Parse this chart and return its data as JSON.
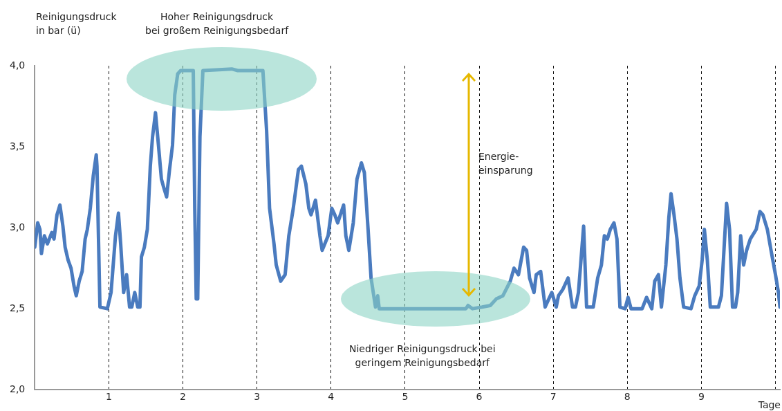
{
  "chart_data": {
    "type": "line",
    "ylabel": "Reinigungsdruck\nin bar (ü)",
    "xlabel": "Tage",
    "annotations": [
      "Hoher Reinigungsdruck\nbei großem Reinigungsbedarf",
      "Niedriger Reinigungsdruck bei\ngeringem Reinigungsbedarf",
      "Energie-\neinsparung"
    ],
    "xlim": [
      0,
      10.06
    ],
    "xticks": [
      1,
      2,
      3,
      4,
      5,
      6,
      7,
      8,
      9,
      {
        "value": 10,
        "label": null
      }
    ],
    "ylim": [
      2,
      4
    ],
    "yticks": [
      {
        "value": 2,
        "label": "2,0"
      },
      {
        "value": 2.5,
        "label": "2,5"
      },
      {
        "value": 3,
        "label": "3,0"
      },
      {
        "value": 3.5,
        "label": "3,5"
      },
      {
        "value": 4,
        "label": "4,0"
      }
    ],
    "grid": "x",
    "marker": "none",
    "line_style": "solid",
    "series": [
      {
        "color": "#4a7bbf",
        "x": [
          0,
          0.04,
          0.07,
          0.09,
          0.13,
          0.17,
          0.23,
          0.26,
          0.3,
          0.34,
          0.38,
          0.41,
          0.45,
          0.49,
          0.53,
          0.56,
          0.6,
          0.64,
          0.68,
          0.71,
          0.75,
          0.79,
          0.83,
          0.84,
          0.88,
          0.98,
          1.03,
          1.09,
          1.13,
          1.16,
          1.2,
          1.24,
          1.28,
          1.31,
          1.35,
          1.39,
          1.42,
          1.44,
          1.48,
          1.52,
          1.56,
          1.59,
          1.63,
          1.67,
          1.71,
          1.74,
          1.78,
          1.82,
          1.86,
          1.89,
          1.93,
          1.97,
          2.14,
          2.16,
          2.18,
          2.2,
          2.23,
          2.27,
          2.66,
          2.74,
          3.08,
          3.13,
          3.17,
          3.23,
          3.26,
          3.32,
          3.38,
          3.43,
          3.49,
          3.56,
          3.6,
          3.66,
          3.7,
          3.73,
          3.79,
          3.85,
          3.88,
          3.96,
          4.01,
          4.05,
          4.09,
          4.17,
          4.2,
          4.24,
          4.3,
          4.35,
          4.41,
          4.45,
          4.5,
          4.54,
          4.6,
          4.63,
          4.65,
          5.1,
          5.82,
          5.85,
          5.91,
          6.04,
          6.15,
          6.23,
          6.32,
          6.42,
          6.47,
          6.53,
          6.6,
          6.64,
          6.68,
          6.74,
          6.77,
          6.83,
          6.89,
          6.98,
          7.04,
          7.07,
          7.13,
          7.2,
          7.26,
          7.3,
          7.34,
          7.41,
          7.45,
          7.54,
          7.6,
          7.65,
          7.69,
          7.73,
          7.77,
          7.82,
          7.86,
          7.9,
          7.97,
          8.01,
          8.05,
          8.2,
          8.26,
          8.33,
          8.37,
          8.42,
          8.46,
          8.52,
          8.56,
          8.59,
          8.63,
          8.67,
          8.71,
          8.76,
          8.86,
          8.91,
          8.97,
          9.01,
          9.04,
          9.08,
          9.12,
          9.23,
          9.27,
          9.34,
          9.38,
          9.42,
          9.46,
          9.49,
          9.53,
          9.57,
          9.61,
          9.66,
          9.74,
          9.79,
          9.83,
          9.89,
          9.94,
          10.0,
          10.04,
          10.06
        ],
        "values": [
          2.88,
          3.03,
          2.99,
          2.84,
          2.95,
          2.9,
          2.97,
          2.93,
          3.08,
          3.14,
          3.01,
          2.88,
          2.8,
          2.75,
          2.64,
          2.58,
          2.67,
          2.73,
          2.93,
          2.99,
          3.12,
          3.32,
          3.45,
          3.38,
          2.51,
          2.5,
          2.6,
          2.95,
          3.09,
          2.9,
          2.6,
          2.71,
          2.51,
          2.51,
          2.6,
          2.51,
          2.51,
          2.82,
          2.88,
          2.99,
          3.38,
          3.56,
          3.71,
          3.51,
          3.3,
          3.25,
          3.19,
          3.36,
          3.51,
          3.82,
          3.95,
          3.97,
          3.97,
          3.12,
          2.56,
          2.56,
          3.56,
          3.97,
          3.98,
          3.97,
          3.97,
          3.6,
          3.12,
          2.9,
          2.77,
          2.67,
          2.71,
          2.95,
          3.12,
          3.36,
          3.38,
          3.27,
          3.12,
          3.08,
          3.17,
          2.95,
          2.86,
          2.95,
          3.12,
          3.08,
          3.03,
          3.14,
          2.95,
          2.86,
          3.03,
          3.3,
          3.4,
          3.34,
          2.99,
          2.69,
          2.51,
          2.58,
          2.5,
          2.5,
          2.5,
          2.52,
          2.5,
          2.51,
          2.52,
          2.56,
          2.58,
          2.67,
          2.75,
          2.71,
          2.88,
          2.86,
          2.69,
          2.6,
          2.71,
          2.73,
          2.51,
          2.6,
          2.51,
          2.58,
          2.62,
          2.69,
          2.51,
          2.51,
          2.6,
          3.01,
          2.51,
          2.51,
          2.69,
          2.77,
          2.95,
          2.93,
          2.99,
          3.03,
          2.93,
          2.51,
          2.5,
          2.57,
          2.5,
          2.5,
          2.57,
          2.5,
          2.67,
          2.71,
          2.51,
          2.77,
          3.06,
          3.21,
          3.08,
          2.93,
          2.69,
          2.51,
          2.5,
          2.58,
          2.64,
          2.8,
          2.99,
          2.8,
          2.51,
          2.51,
          2.58,
          3.15,
          2.99,
          2.51,
          2.51,
          2.6,
          2.95,
          2.77,
          2.86,
          2.93,
          2.99,
          3.1,
          3.08,
          2.99,
          2.86,
          2.71,
          2.6,
          2.51
        ]
      }
    ]
  }
}
